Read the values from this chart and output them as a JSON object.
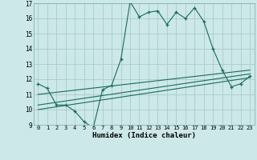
{
  "xlabel": "Humidex (Indice chaleur)",
  "xlim": [
    -0.5,
    23.5
  ],
  "ylim": [
    9,
    17
  ],
  "yticks": [
    9,
    10,
    11,
    12,
    13,
    14,
    15,
    16,
    17
  ],
  "xticks": [
    0,
    1,
    2,
    3,
    4,
    5,
    6,
    7,
    8,
    9,
    10,
    11,
    12,
    13,
    14,
    15,
    16,
    17,
    18,
    19,
    20,
    21,
    22,
    23
  ],
  "bg_color": "#cce8e8",
  "grid_color": "#aacccc",
  "line_color": "#1a6b5a",
  "line1_x": [
    0,
    1,
    2,
    3,
    4,
    5,
    6,
    7,
    8,
    9,
    10,
    11,
    12,
    13,
    14,
    15,
    16,
    17,
    18,
    19,
    20,
    21,
    22,
    23
  ],
  "line1_y": [
    11.7,
    11.4,
    10.3,
    10.3,
    9.9,
    9.2,
    8.8,
    11.3,
    11.6,
    13.3,
    17.1,
    16.1,
    16.4,
    16.5,
    15.6,
    16.4,
    16.0,
    16.7,
    15.8,
    14.0,
    12.6,
    11.5,
    11.7,
    12.2
  ],
  "line2_x": [
    0,
    23
  ],
  "line2_y": [
    10.0,
    12.1
  ],
  "line3_x": [
    0,
    23
  ],
  "line3_y": [
    10.3,
    12.35
  ],
  "line4_x": [
    0,
    23
  ],
  "line4_y": [
    11.0,
    12.6
  ]
}
